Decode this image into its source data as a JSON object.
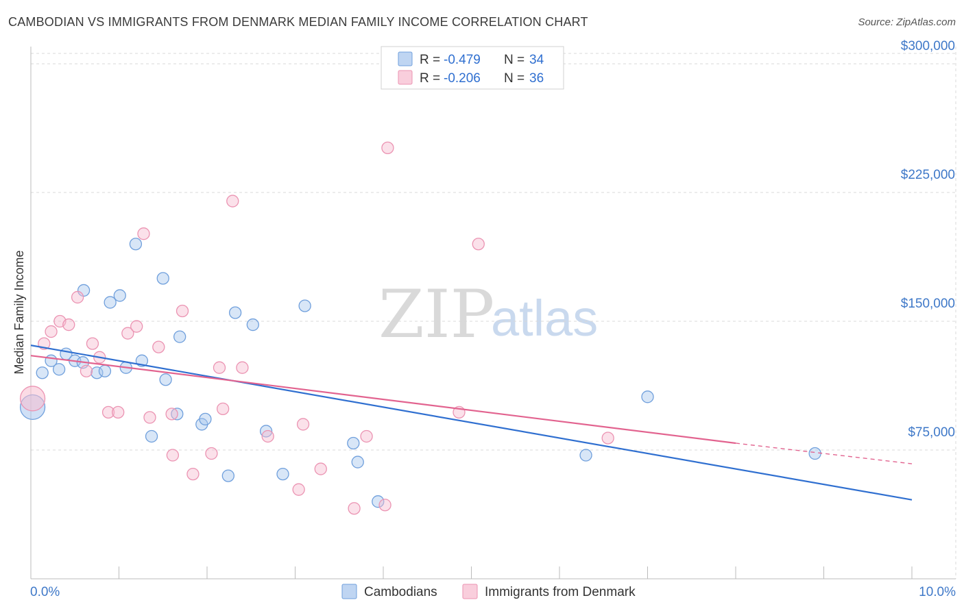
{
  "header": {
    "title": "CAMBODIAN VS IMMIGRANTS FROM DENMARK MEDIAN FAMILY INCOME CORRELATION CHART",
    "source": "Source: ZipAtlas.com"
  },
  "watermark": {
    "zip": "ZIP",
    "atlas": "atlas"
  },
  "colors": {
    "blue_fill": "#a9c7ee",
    "blue_stroke": "#6f9fdc",
    "blue_line": "#2f6fd0",
    "pink_fill": "#f7bdd0",
    "pink_stroke": "#eb93b2",
    "pink_line": "#e2638f",
    "grid": "#d8d8d8",
    "tick_text": "#3e78c8"
  },
  "legend_top": {
    "entries": [
      {
        "r_label": "R = ",
        "r_value": "-0.479",
        "n_label": "N = ",
        "n_value": "34",
        "color": "blue"
      },
      {
        "r_label": "R = ",
        "r_value": "-0.206",
        "n_label": "N = ",
        "n_value": "36",
        "color": "pink"
      }
    ]
  },
  "chart_data": {
    "type": "scatter",
    "title": "CAMBODIAN VS IMMIGRANTS FROM DENMARK MEDIAN FAMILY INCOME CORRELATION CHART",
    "xlabel": "",
    "ylabel": "Median Family Income",
    "xlim": [
      0.0,
      10.0
    ],
    "ylim": [
      0,
      310000
    ],
    "x_tick_labels": [
      "0.0%",
      "10.0%"
    ],
    "y_ticks": [
      75000,
      150000,
      225000,
      300000
    ],
    "y_tick_labels": [
      "$75,000",
      "$150,000",
      "$225,000",
      "$300,000"
    ],
    "grid": true,
    "legend_position": "bottom-center",
    "series": [
      {
        "name": "Cambodians",
        "color": "blue",
        "points": [
          [
            0.02,
            100000
          ],
          [
            0.13,
            120000
          ],
          [
            0.23,
            127000
          ],
          [
            0.32,
            122000
          ],
          [
            0.4,
            131000
          ],
          [
            0.5,
            127000
          ],
          [
            0.59,
            126000
          ],
          [
            0.6,
            168000
          ],
          [
            0.75,
            120000
          ],
          [
            0.84,
            121000
          ],
          [
            0.9,
            161000
          ],
          [
            1.01,
            165000
          ],
          [
            1.08,
            123000
          ],
          [
            1.19,
            195000
          ],
          [
            1.26,
            127000
          ],
          [
            1.37,
            83000
          ],
          [
            1.5,
            175000
          ],
          [
            1.53,
            116000
          ],
          [
            1.66,
            96000
          ],
          [
            1.69,
            141000
          ],
          [
            1.94,
            90000
          ],
          [
            1.98,
            93000
          ],
          [
            2.24,
            60000
          ],
          [
            2.32,
            155000
          ],
          [
            2.52,
            148000
          ],
          [
            2.67,
            86000
          ],
          [
            2.86,
            61000
          ],
          [
            3.11,
            159000
          ],
          [
            3.66,
            79000
          ],
          [
            3.71,
            68000
          ],
          [
            3.94,
            45000
          ],
          [
            6.3,
            72000
          ],
          [
            7.0,
            106000
          ],
          [
            8.9,
            73000
          ]
        ],
        "trend": {
          "x": [
            0.0,
            10.0
          ],
          "y": [
            136000,
            46000
          ]
        }
      },
      {
        "name": "Immigrants from Denmark",
        "color": "pink",
        "points": [
          [
            0.02,
            105000
          ],
          [
            0.15,
            137000
          ],
          [
            0.23,
            144000
          ],
          [
            0.33,
            150000
          ],
          [
            0.43,
            148000
          ],
          [
            0.53,
            164000
          ],
          [
            0.63,
            121000
          ],
          [
            0.7,
            137000
          ],
          [
            0.78,
            129000
          ],
          [
            0.88,
            97000
          ],
          [
            0.99,
            97000
          ],
          [
            1.1,
            143000
          ],
          [
            1.2,
            147000
          ],
          [
            1.28,
            201000
          ],
          [
            1.35,
            94000
          ],
          [
            1.45,
            135000
          ],
          [
            1.6,
            96000
          ],
          [
            1.61,
            72000
          ],
          [
            1.72,
            156000
          ],
          [
            1.84,
            61000
          ],
          [
            2.05,
            73000
          ],
          [
            2.14,
            123000
          ],
          [
            2.18,
            99000
          ],
          [
            2.29,
            220000
          ],
          [
            2.4,
            123000
          ],
          [
            2.69,
            83000
          ],
          [
            3.04,
            52000
          ],
          [
            3.09,
            90000
          ],
          [
            3.29,
            64000
          ],
          [
            3.67,
            41000
          ],
          [
            3.81,
            83000
          ],
          [
            4.02,
            43000
          ],
          [
            4.05,
            251000
          ],
          [
            4.86,
            97000
          ],
          [
            5.08,
            195000
          ],
          [
            6.55,
            82000
          ]
        ],
        "trend": {
          "x": [
            0.0,
            8.0
          ],
          "y": [
            130000,
            79000
          ]
        },
        "trend_dashed": {
          "x": [
            8.0,
            10.0
          ],
          "y": [
            79000,
            67000
          ]
        }
      }
    ]
  },
  "legend_bottom": {
    "items": [
      {
        "label": "Cambodians",
        "color": "blue"
      },
      {
        "label": "Immigrants from Denmark",
        "color": "pink"
      }
    ]
  }
}
